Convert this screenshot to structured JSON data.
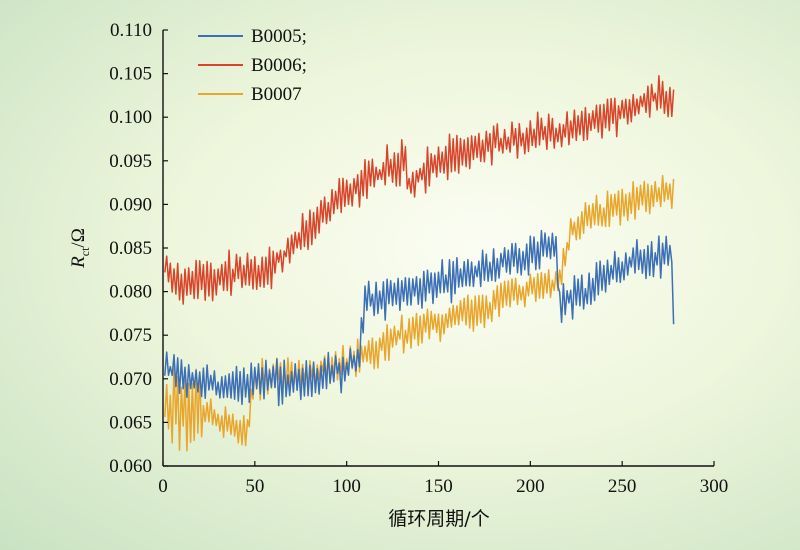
{
  "chart_data": {
    "type": "line",
    "xlabel": "循环周期/个",
    "ylabel_main": "R",
    "ylabel_sub": "ct",
    "ylabel_unit": "/Ω",
    "xlim": [
      0,
      300
    ],
    "ylim": [
      0.06,
      0.11
    ],
    "x_ticks": [
      "0",
      "50",
      "100",
      "150",
      "200",
      "250",
      "300"
    ],
    "y_ticks": [
      "0.060",
      "0.065",
      "0.070",
      "0.075",
      "0.080",
      "0.085",
      "0.090",
      "0.095",
      "0.100",
      "0.105",
      "0.110"
    ],
    "grid": false,
    "legend_position": "top-left",
    "series": [
      {
        "name": "B0005;",
        "color": "#3b6fb6",
        "x_max": 278,
        "trend": [
          [
            0,
            0.071
          ],
          [
            20,
            0.0695
          ],
          [
            40,
            0.069
          ],
          [
            50,
            0.07
          ],
          [
            70,
            0.0695
          ],
          [
            100,
            0.071
          ],
          [
            107,
            0.0725
          ],
          [
            110,
            0.079
          ],
          [
            130,
            0.08
          ],
          [
            150,
            0.081
          ],
          [
            170,
            0.082
          ],
          [
            200,
            0.0845
          ],
          [
            214,
            0.0855
          ],
          [
            216,
            0.0785
          ],
          [
            230,
            0.08
          ],
          [
            245,
            0.0825
          ],
          [
            260,
            0.0835
          ],
          [
            277,
            0.0845
          ],
          [
            278,
            0.0745
          ]
        ],
        "amplitude": 0.0022
      },
      {
        "name": "B0006;",
        "color": "#d8452a",
        "x_max": 278,
        "trend": [
          [
            0,
            0.0835
          ],
          [
            3,
            0.082
          ],
          [
            10,
            0.081
          ],
          [
            25,
            0.081
          ],
          [
            40,
            0.0825
          ],
          [
            55,
            0.082
          ],
          [
            70,
            0.085
          ],
          [
            90,
            0.0895
          ],
          [
            110,
            0.093
          ],
          [
            132,
            0.095
          ],
          [
            134,
            0.0915
          ],
          [
            140,
            0.0935
          ],
          [
            160,
            0.096
          ],
          [
            190,
            0.0975
          ],
          [
            220,
            0.0985
          ],
          [
            250,
            0.1005
          ],
          [
            270,
            0.1025
          ],
          [
            278,
            0.1015
          ]
        ],
        "amplitude": 0.0022
      },
      {
        "name": "B0007",
        "color": "#e9a62c",
        "x_max": 278,
        "trend": [
          [
            0,
            0.068
          ],
          [
            5,
            0.0665
          ],
          [
            15,
            0.066
          ],
          [
            25,
            0.066
          ],
          [
            35,
            0.065
          ],
          [
            46,
            0.0635
          ],
          [
            50,
            0.07
          ],
          [
            70,
            0.0705
          ],
          [
            100,
            0.0715
          ],
          [
            130,
            0.075
          ],
          [
            150,
            0.0765
          ],
          [
            180,
            0.0785
          ],
          [
            200,
            0.0805
          ],
          [
            216,
            0.081
          ],
          [
            222,
            0.0875
          ],
          [
            240,
            0.089
          ],
          [
            260,
            0.0905
          ],
          [
            278,
            0.0915
          ]
        ],
        "amplitude": 0.002
      }
    ]
  }
}
